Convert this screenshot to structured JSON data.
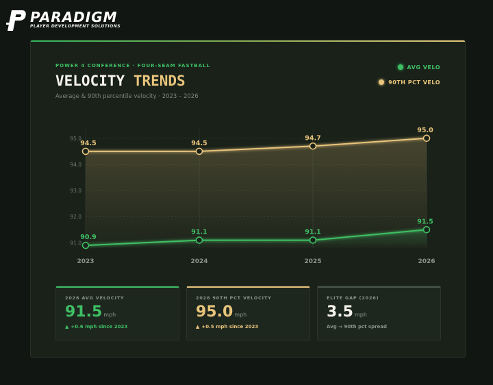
{
  "brand": {
    "name": "PARADIGM",
    "tagline": "PLAYER DEVELOPMENT SOLUTIONS"
  },
  "header": {
    "kicker": "POWER 4 CONFERENCE · FOUR-SEAM FASTBALL",
    "title_part1": "VELOCITY",
    "title_part2": "TRENDS",
    "subtitle": "Average & 90th percentile velocity · 2023 – 2026"
  },
  "legend": {
    "avg": "AVG VELO",
    "p90": "90TH PCT VELO"
  },
  "colors": {
    "avg": "#3fbf64",
    "p90": "#e8c47c",
    "gap": "#f5f3ea"
  },
  "chart_data": {
    "type": "line",
    "title": "VELOCITY TRENDS",
    "xlabel": "",
    "ylabel": "",
    "categories": [
      "2023",
      "2024",
      "2025",
      "2026"
    ],
    "y_ticks": [
      "91.0",
      "92.0",
      "93.0",
      "94.0",
      "95.0"
    ],
    "ylim": [
      90.8,
      95.1
    ],
    "series": [
      {
        "name": "90TH PCT VELO",
        "values": [
          94.5,
          94.5,
          94.7,
          95.0
        ],
        "labels": [
          "94.5",
          "94.5",
          "94.7",
          "95.0"
        ]
      },
      {
        "name": "AVG VELO",
        "values": [
          90.9,
          91.1,
          91.1,
          91.5
        ],
        "labels": [
          "90.9",
          "91.1",
          "91.1",
          "91.5"
        ]
      }
    ],
    "legend": "top-right"
  },
  "stats": [
    {
      "label": "2026 AVG VELOCITY",
      "value": "91.5",
      "unit": "mph",
      "note": "+0.6 mph since 2023",
      "trend": "▲"
    },
    {
      "label": "2026 90TH PCT VELOCITY",
      "value": "95.0",
      "unit": "mph",
      "note": "+0.5 mph since 2023",
      "trend": "▲"
    },
    {
      "label": "ELITE GAP (2026)",
      "value": "3.5",
      "unit": "mph",
      "note": "Avg → 90th pct spread"
    }
  ]
}
